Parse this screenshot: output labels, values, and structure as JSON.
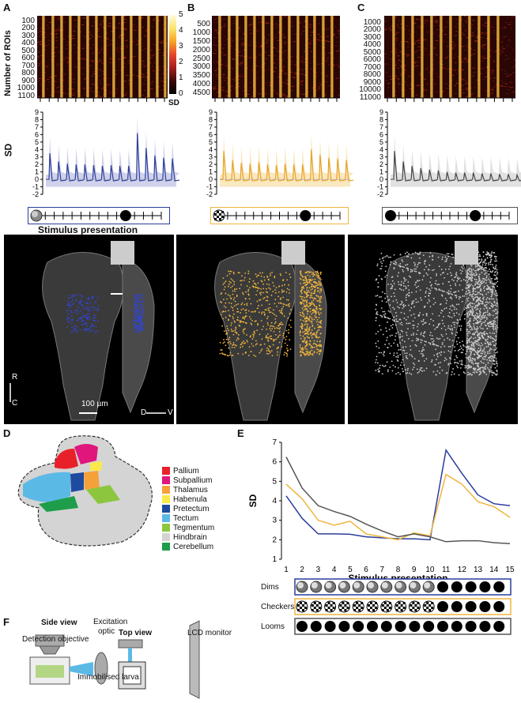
{
  "panel_labels": {
    "A": "A",
    "B": "B",
    "C": "C",
    "D": "D",
    "E": "E",
    "F": "F"
  },
  "heatmap": {
    "ylabel": "Number of ROIs",
    "A_ticks": [
      "100",
      "200",
      "300",
      "400",
      "500",
      "600",
      "700",
      "800",
      "900",
      "1000",
      "1100"
    ],
    "B_ticks": [
      "500",
      "1000",
      "1500",
      "2000",
      "2500",
      "3000",
      "3500",
      "4000",
      "4500"
    ],
    "C_ticks": [
      "1000",
      "2000",
      "3000",
      "4000",
      "5000",
      "6000",
      "7000",
      "8000",
      "9000",
      "10000",
      "11000"
    ],
    "colorbar_ticks": [
      "5",
      "4",
      "3",
      "2",
      "1",
      "0"
    ],
    "colorbar_label": "SD"
  },
  "traces": {
    "ylabel": "SD",
    "yticks": [
      "9",
      "8",
      "7",
      "6",
      "5",
      "4",
      "3",
      "2",
      "1",
      "0",
      "-1",
      "-2"
    ],
    "xlabel": "Stimulus presentation"
  },
  "brain": {
    "scale_label": "100 µm",
    "axis_r": "R",
    "axis_c": "C",
    "axis_d": "D",
    "axis_v": "V"
  },
  "legend_d": [
    {
      "label": "Pallium",
      "color": "#e8202a"
    },
    {
      "label": "Subpallium",
      "color": "#e0167c"
    },
    {
      "label": "Thalamus",
      "color": "#f5a13a"
    },
    {
      "label": "Habenula",
      "color": "#fbe94a"
    },
    {
      "label": "Pretectum",
      "color": "#1e4aa0"
    },
    {
      "label": "Tectum",
      "color": "#5bb9e6"
    },
    {
      "label": "Tegmentum",
      "color": "#8cc63f"
    },
    {
      "label": "Hindbrain",
      "color": "#d4d4d4"
    },
    {
      "label": "Cerebellum",
      "color": "#1e9e4a"
    }
  ],
  "panel_f": {
    "side_view": "Side view",
    "top_view": "Top view",
    "excitation": "Excitation\noptic",
    "excitation_l1": "Excitation",
    "excitation_l2": "optic",
    "lcd": "LCD monitor",
    "detection": "Detection objective",
    "larva": "Immobilised larva"
  },
  "colors": {
    "dims": "#2a3d9b",
    "checkers": "#f0b43c",
    "looms": "#555555"
  },
  "chart_data": {
    "type": "line",
    "x": [
      1,
      2,
      3,
      4,
      5,
      6,
      7,
      8,
      9,
      10,
      11,
      12,
      13,
      14,
      15
    ],
    "xlabel": "Stimulus presentation",
    "ylabel": "SD",
    "ylim": [
      1,
      7
    ],
    "yticks": [
      "1",
      "2",
      "3",
      "4",
      "5",
      "6",
      "7"
    ],
    "xticks": [
      "1",
      "2",
      "3",
      "4",
      "5",
      "6",
      "7",
      "8",
      "9",
      "10",
      "11",
      "12",
      "13",
      "14",
      "15"
    ],
    "series": [
      {
        "name": "Dims",
        "color": "#2a3d9b",
        "values": [
          4.25,
          3.1,
          2.3,
          2.3,
          2.28,
          2.15,
          2.1,
          2.05,
          2.05,
          2.0,
          6.6,
          5.4,
          4.3,
          3.85,
          3.75
        ]
      },
      {
        "name": "Checkers",
        "color": "#f0b43c",
        "values": [
          4.85,
          4.1,
          3.0,
          2.75,
          2.95,
          2.3,
          2.15,
          2.0,
          2.35,
          2.2,
          5.35,
          4.85,
          3.95,
          3.7,
          3.15
        ]
      },
      {
        "name": "Looms",
        "color": "#555555",
        "values": [
          6.25,
          4.65,
          3.75,
          3.45,
          3.2,
          2.8,
          2.45,
          2.15,
          2.3,
          2.15,
          1.9,
          1.95,
          1.95,
          1.85,
          1.8
        ]
      }
    ],
    "rows": [
      "Dims",
      "Checkers",
      "Looms"
    ]
  }
}
